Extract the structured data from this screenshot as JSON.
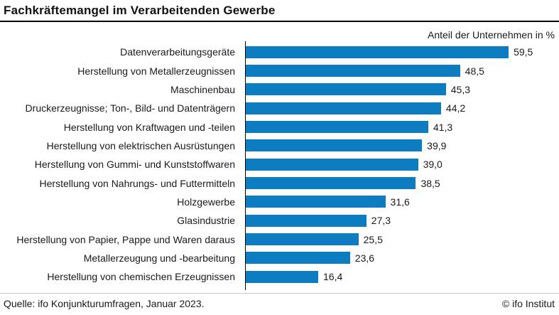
{
  "header": {
    "title": "Fachkräftemangel im Verarbeitenden Gewerbe"
  },
  "chart_data": {
    "type": "bar",
    "orientation": "horizontal",
    "title": "Fachkräftemangel im Verarbeitenden Gewerbe",
    "unit_label": "Anteil der Unternehmen in %",
    "categories": [
      "Datenverarbeitungsgeräte",
      "Herstellung von Metallerzeugnissen",
      "Maschinenbau",
      "Druckerzeugnisse; Ton-, Bild- und Datenträgern",
      "Herstellung von Kraftwagen und -teilen",
      "Herstellung von elektrischen Ausrüstungen",
      "Herstellung von Gummi- und Kunststoffwaren",
      "Herstellung von Nahrungs- und Futtermitteln",
      "Holzgewerbe",
      "Glasindustrie",
      "Herstellung von Papier, Pappe und Waren daraus",
      "Metallerzeugung und -bearbeitung",
      "Herstellung von chemischen Erzeugnissen"
    ],
    "values": [
      59.5,
      48.5,
      45.3,
      44.2,
      41.3,
      39.9,
      39.0,
      38.5,
      31.6,
      27.3,
      25.5,
      23.6,
      16.4
    ],
    "value_labels": [
      "59,5",
      "48,5",
      "45,3",
      "44,2",
      "41,3",
      "39,9",
      "39,0",
      "38,5",
      "31,6",
      "27,3",
      "25,5",
      "23,6",
      "16,4"
    ],
    "bar_color": "#0d7cc1",
    "xlim": [
      0,
      62
    ],
    "grid": false,
    "sorted": "descending",
    "value_labels_position": "end"
  },
  "footer": {
    "source": "Quelle: ifo Konjunkturumfragen, Januar 2023.",
    "copyright": "© ifo Institut"
  }
}
